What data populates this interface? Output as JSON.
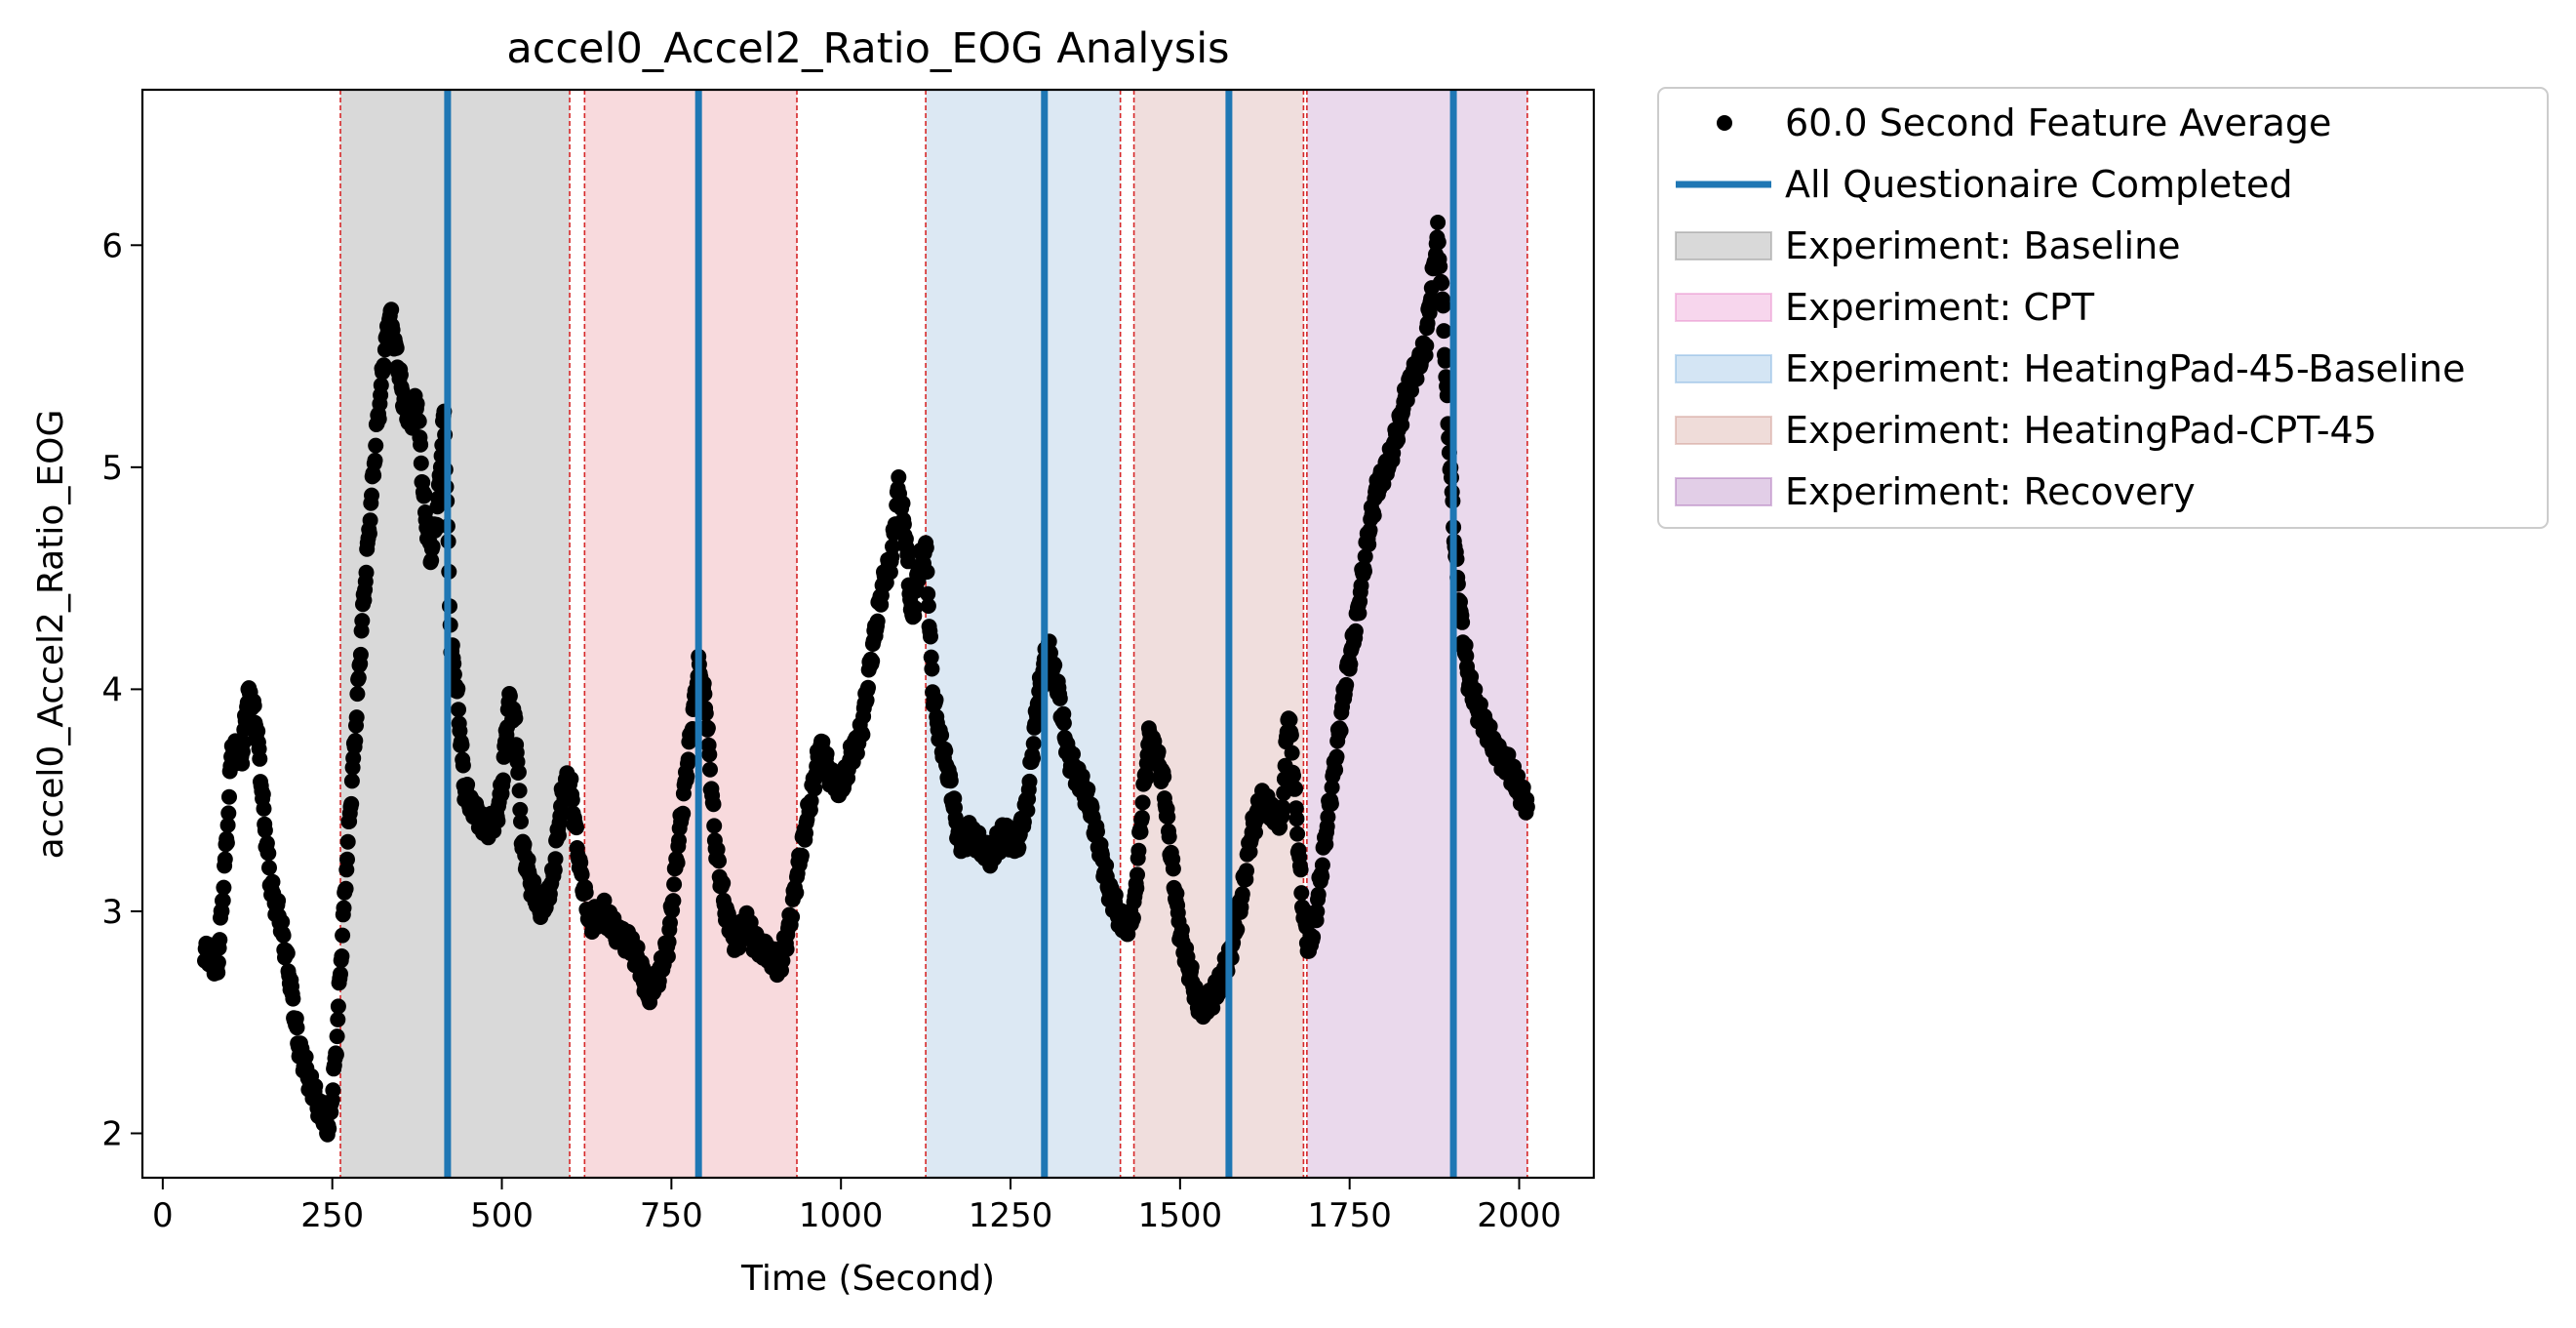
{
  "chart_data": {
    "type": "scatter",
    "title": "accel0_Accel2_Ratio_EOG Analysis",
    "xlabel": "Time (Second)",
    "ylabel": "accel0_Accel2_Ratio_EOG",
    "xlim": [
      -30,
      2110
    ],
    "ylim": [
      1.8,
      6.7
    ],
    "x_ticks": [
      0,
      250,
      500,
      750,
      1000,
      1250,
      1500,
      1750,
      2000
    ],
    "y_ticks": [
      2,
      3,
      4,
      5,
      6
    ],
    "grid": false,
    "legend_position": "outside right, top",
    "legend": [
      {
        "label": "60.0 Second Feature Average",
        "kind": "marker",
        "color": "#000000"
      },
      {
        "label": "All Questionaire Completed",
        "kind": "line",
        "color": "#1f77b4"
      },
      {
        "label": "Experiment: Baseline",
        "kind": "patch",
        "color": "#808080"
      },
      {
        "label": "Experiment: CPT",
        "kind": "patch",
        "color": "#e377c2"
      },
      {
        "label": "Experiment: HeatingPad-45-Baseline",
        "kind": "patch",
        "color": "#6fa8dc"
      },
      {
        "label": "Experiment: HeatingPad-CPT-45",
        "kind": "patch",
        "color": "#c98a80"
      },
      {
        "label": "Experiment: Recovery",
        "kind": "patch",
        "color": "#a05db0"
      }
    ],
    "regions": [
      {
        "name": "Experiment: Baseline",
        "start": 262,
        "end": 600,
        "color": "#d9d9d9"
      },
      {
        "name": "Experiment: CPT",
        "start": 622,
        "end": 935,
        "color": "#f8dadd"
      },
      {
        "name": "Experiment: HeatingPad-45-Baseline",
        "start": 1125,
        "end": 1412,
        "color": "#dce8f3"
      },
      {
        "name": "Experiment: HeatingPad-CPT-45",
        "start": 1432,
        "end": 1682,
        "color": "#f0dedd"
      },
      {
        "name": "Experiment: Recovery",
        "start": 1687,
        "end": 2012,
        "color": "#ead9ec"
      }
    ],
    "boundary_lines": [
      262,
      600,
      622,
      935,
      1125,
      1412,
      1432,
      1682,
      1687,
      2012
    ],
    "questionnaire_lines": [
      420,
      790,
      1300,
      1572,
      1903
    ],
    "series": [
      {
        "name": "60.0 Second Feature Average",
        "color": "#000000",
        "keypoints": [
          [
            62,
            2.82
          ],
          [
            72,
            2.8
          ],
          [
            80,
            2.72
          ],
          [
            88,
            3.05
          ],
          [
            95,
            3.35
          ],
          [
            102,
            3.75
          ],
          [
            110,
            3.7
          ],
          [
            118,
            3.72
          ],
          [
            125,
            3.98
          ],
          [
            132,
            3.95
          ],
          [
            140,
            3.78
          ],
          [
            150,
            3.4
          ],
          [
            160,
            3.1
          ],
          [
            172,
            2.98
          ],
          [
            185,
            2.75
          ],
          [
            200,
            2.4
          ],
          [
            215,
            2.25
          ],
          [
            230,
            2.12
          ],
          [
            245,
            2.02
          ],
          [
            255,
            2.35
          ],
          [
            265,
            2.9
          ],
          [
            275,
            3.4
          ],
          [
            285,
            3.85
          ],
          [
            295,
            4.35
          ],
          [
            305,
            4.75
          ],
          [
            315,
            5.15
          ],
          [
            325,
            5.45
          ],
          [
            335,
            5.7
          ],
          [
            345,
            5.5
          ],
          [
            355,
            5.3
          ],
          [
            365,
            5.2
          ],
          [
            375,
            5.3
          ],
          [
            385,
            4.85
          ],
          [
            395,
            4.6
          ],
          [
            405,
            4.8
          ],
          [
            415,
            5.25
          ],
          [
            425,
            4.2
          ],
          [
            435,
            3.95
          ],
          [
            445,
            3.55
          ],
          [
            460,
            3.45
          ],
          [
            475,
            3.38
          ],
          [
            490,
            3.4
          ],
          [
            500,
            3.55
          ],
          [
            510,
            3.95
          ],
          [
            520,
            3.85
          ],
          [
            530,
            3.3
          ],
          [
            545,
            3.1
          ],
          [
            560,
            3.0
          ],
          [
            575,
            3.15
          ],
          [
            590,
            3.55
          ],
          [
            600,
            3.6
          ],
          [
            615,
            3.2
          ],
          [
            630,
            2.95
          ],
          [
            650,
            3.0
          ],
          [
            670,
            2.9
          ],
          [
            690,
            2.85
          ],
          [
            705,
            2.75
          ],
          [
            715,
            2.62
          ],
          [
            730,
            2.7
          ],
          [
            745,
            2.85
          ],
          [
            760,
            3.3
          ],
          [
            775,
            3.7
          ],
          [
            790,
            4.1
          ],
          [
            800,
            3.95
          ],
          [
            815,
            3.3
          ],
          [
            830,
            3.0
          ],
          [
            845,
            2.85
          ],
          [
            860,
            2.95
          ],
          [
            875,
            2.85
          ],
          [
            890,
            2.82
          ],
          [
            910,
            2.75
          ],
          [
            925,
            2.95
          ],
          [
            940,
            3.25
          ],
          [
            955,
            3.5
          ],
          [
            970,
            3.75
          ],
          [
            985,
            3.6
          ],
          [
            1000,
            3.55
          ],
          [
            1015,
            3.7
          ],
          [
            1030,
            3.8
          ],
          [
            1045,
            4.15
          ],
          [
            1060,
            4.45
          ],
          [
            1075,
            4.6
          ],
          [
            1085,
            4.92
          ],
          [
            1095,
            4.7
          ],
          [
            1105,
            4.3
          ],
          [
            1115,
            4.55
          ],
          [
            1125,
            4.65
          ],
          [
            1135,
            4.0
          ],
          [
            1145,
            3.8
          ],
          [
            1160,
            3.6
          ],
          [
            1175,
            3.3
          ],
          [
            1190,
            3.35
          ],
          [
            1205,
            3.3
          ],
          [
            1220,
            3.25
          ],
          [
            1240,
            3.35
          ],
          [
            1260,
            3.3
          ],
          [
            1275,
            3.5
          ],
          [
            1290,
            3.95
          ],
          [
            1305,
            4.2
          ],
          [
            1320,
            4.0
          ],
          [
            1335,
            3.7
          ],
          [
            1350,
            3.6
          ],
          [
            1365,
            3.5
          ],
          [
            1380,
            3.3
          ],
          [
            1395,
            3.1
          ],
          [
            1410,
            2.98
          ],
          [
            1420,
            2.92
          ],
          [
            1432,
            3.0
          ],
          [
            1445,
            3.5
          ],
          [
            1455,
            3.8
          ],
          [
            1465,
            3.7
          ],
          [
            1475,
            3.6
          ],
          [
            1485,
            3.3
          ],
          [
            1500,
            2.9
          ],
          [
            1515,
            2.72
          ],
          [
            1530,
            2.55
          ],
          [
            1545,
            2.6
          ],
          [
            1560,
            2.68
          ],
          [
            1575,
            2.82
          ],
          [
            1590,
            3.05
          ],
          [
            1605,
            3.35
          ],
          [
            1620,
            3.5
          ],
          [
            1635,
            3.45
          ],
          [
            1650,
            3.4
          ],
          [
            1660,
            3.92
          ],
          [
            1670,
            3.5
          ],
          [
            1680,
            3.05
          ],
          [
            1690,
            2.82
          ],
          [
            1700,
            2.98
          ],
          [
            1715,
            3.35
          ],
          [
            1730,
            3.7
          ],
          [
            1745,
            4.05
          ],
          [
            1760,
            4.3
          ],
          [
            1775,
            4.65
          ],
          [
            1790,
            4.9
          ],
          [
            1805,
            5.0
          ],
          [
            1820,
            5.15
          ],
          [
            1835,
            5.35
          ],
          [
            1850,
            5.45
          ],
          [
            1862,
            5.55
          ],
          [
            1872,
            5.85
          ],
          [
            1880,
            6.05
          ],
          [
            1888,
            5.7
          ],
          [
            1895,
            5.2
          ],
          [
            1905,
            4.65
          ],
          [
            1915,
            4.3
          ],
          [
            1925,
            4.05
          ],
          [
            1940,
            3.9
          ],
          [
            1955,
            3.8
          ],
          [
            1970,
            3.7
          ],
          [
            1985,
            3.65
          ],
          [
            2000,
            3.55
          ],
          [
            2012,
            3.47
          ]
        ]
      }
    ]
  }
}
